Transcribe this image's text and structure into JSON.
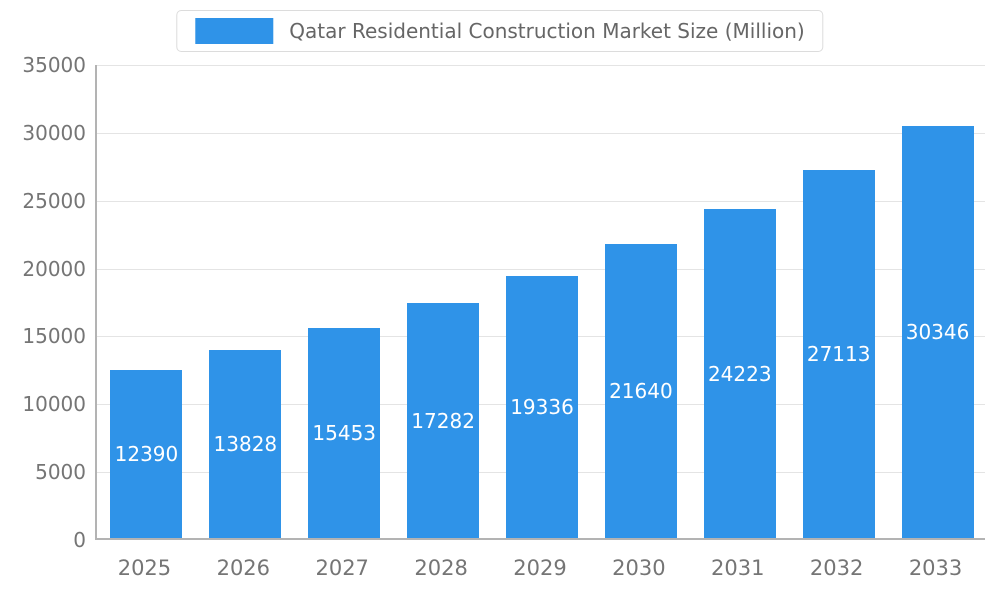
{
  "chart_data": {
    "type": "bar",
    "title": "Qatar Residential Construction Market Size (Million)",
    "categories": [
      "2025",
      "2026",
      "2027",
      "2028",
      "2029",
      "2030",
      "2031",
      "2032",
      "2033"
    ],
    "values": [
      12390,
      13828,
      15453,
      17282,
      19336,
      21640,
      24223,
      27113,
      30346
    ],
    "xlabel": "",
    "ylabel": "",
    "ylim": [
      0,
      35000
    ],
    "yticks": [
      0,
      5000,
      10000,
      15000,
      20000,
      25000,
      30000,
      35000
    ],
    "grid": true,
    "legend_position": "top-center",
    "colors": {
      "bar": "#2F93E8",
      "bar_label": "#ffffff",
      "axis_text": "#757575",
      "legend_text": "#666666",
      "gridline": "#e4e4e4",
      "axis_line": "#b3b3b3"
    }
  }
}
